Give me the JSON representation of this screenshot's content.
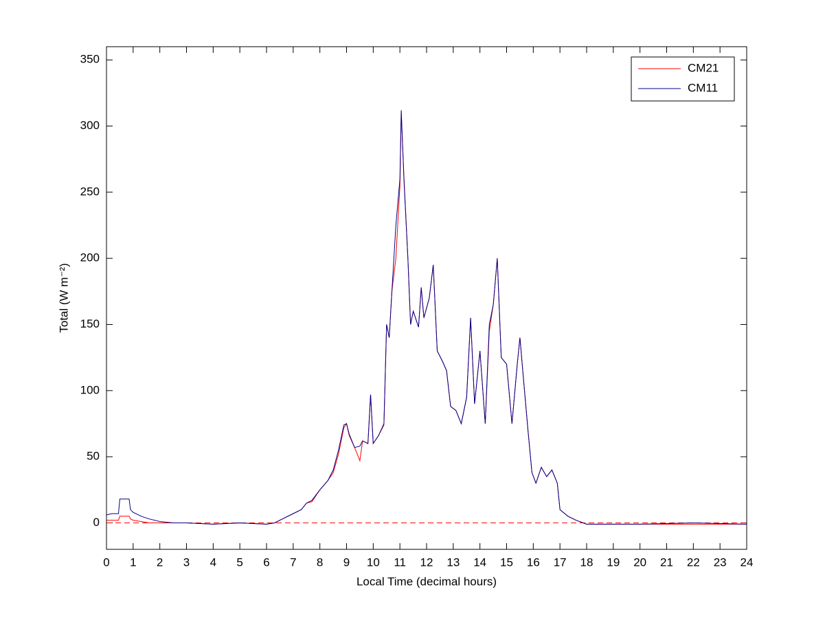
{
  "chart_data": {
    "type": "line",
    "xlabel": "Local Time (decimal hours)",
    "ylabel": "Total (W m⁻²)",
    "x": [
      0,
      0.2,
      0.45,
      0.5,
      0.85,
      0.9,
      1.0,
      1.3,
      1.6,
      2.0,
      2.5,
      3,
      4,
      5,
      6,
      6.3,
      6.6,
      7,
      7.3,
      7.5,
      7.7,
      8,
      8.3,
      8.5,
      8.7,
      8.9,
      9.0,
      9.1,
      9.3,
      9.5,
      9.6,
      9.8,
      9.9,
      10.0,
      10.2,
      10.4,
      10.5,
      10.6,
      10.7,
      10.85,
      11.0,
      11.05,
      11.15,
      11.3,
      11.4,
      11.5,
      11.7,
      11.8,
      11.9,
      12.1,
      12.25,
      12.4,
      12.6,
      12.75,
      12.9,
      13.1,
      13.3,
      13.5,
      13.65,
      13.8,
      14.0,
      14.2,
      14.35,
      14.5,
      14.65,
      14.8,
      15.0,
      15.2,
      15.4,
      15.5,
      15.65,
      15.8,
      15.95,
      16.1,
      16.3,
      16.5,
      16.7,
      16.9,
      17.0,
      17.3,
      17.6,
      18,
      20,
      22,
      24
    ],
    "series": [
      {
        "name": "CM21",
        "color": "#ff0000",
        "values": [
          2,
          2,
          2,
          5,
          5,
          3,
          2,
          1,
          0,
          0,
          0,
          0,
          -1,
          0,
          -1,
          0,
          3,
          7,
          10,
          15,
          16,
          25,
          32,
          38,
          52,
          72,
          75,
          66,
          57,
          47,
          62,
          60,
          97,
          60,
          66,
          74,
          150,
          140,
          175,
          200,
          255,
          310,
          262,
          200,
          150,
          160,
          148,
          178,
          155,
          170,
          195,
          130,
          122,
          115,
          88,
          85,
          75,
          95,
          155,
          90,
          130,
          75,
          145,
          165,
          200,
          125,
          120,
          75,
          120,
          140,
          105,
          70,
          38,
          30,
          42,
          35,
          40,
          30,
          10,
          5,
          2,
          -1,
          -1,
          -1,
          -1
        ]
      },
      {
        "name": "CM11",
        "color": "#00008b",
        "values": [
          6,
          7,
          7,
          18,
          18,
          10,
          8,
          5,
          3,
          1,
          0,
          0,
          -1,
          0,
          -1,
          0,
          3,
          7,
          10,
          15,
          17,
          25,
          32,
          40,
          55,
          74,
          75,
          67,
          57,
          58,
          62,
          60,
          97,
          60,
          66,
          75,
          150,
          140,
          175,
          225,
          260,
          312,
          260,
          200,
          150,
          160,
          148,
          178,
          155,
          170,
          195,
          130,
          122,
          115,
          88,
          85,
          75,
          95,
          155,
          90,
          130,
          75,
          150,
          165,
          200,
          125,
          120,
          75,
          120,
          140,
          105,
          70,
          38,
          30,
          42,
          35,
          40,
          30,
          10,
          5,
          2,
          -1,
          -1,
          0,
          -1
        ]
      }
    ],
    "reference_line": {
      "value": 0,
      "color": "#ff0000",
      "style": "dashed"
    },
    "xlim": [
      0,
      24
    ],
    "xticks": [
      0,
      1,
      2,
      3,
      4,
      5,
      6,
      7,
      8,
      9,
      10,
      11,
      12,
      13,
      14,
      15,
      16,
      17,
      18,
      19,
      20,
      21,
      22,
      23,
      24
    ],
    "ylim": [
      -20,
      360
    ],
    "yticks": [
      0,
      50,
      100,
      150,
      200,
      250,
      300,
      350
    ],
    "legend": "upper right",
    "grid": false
  }
}
